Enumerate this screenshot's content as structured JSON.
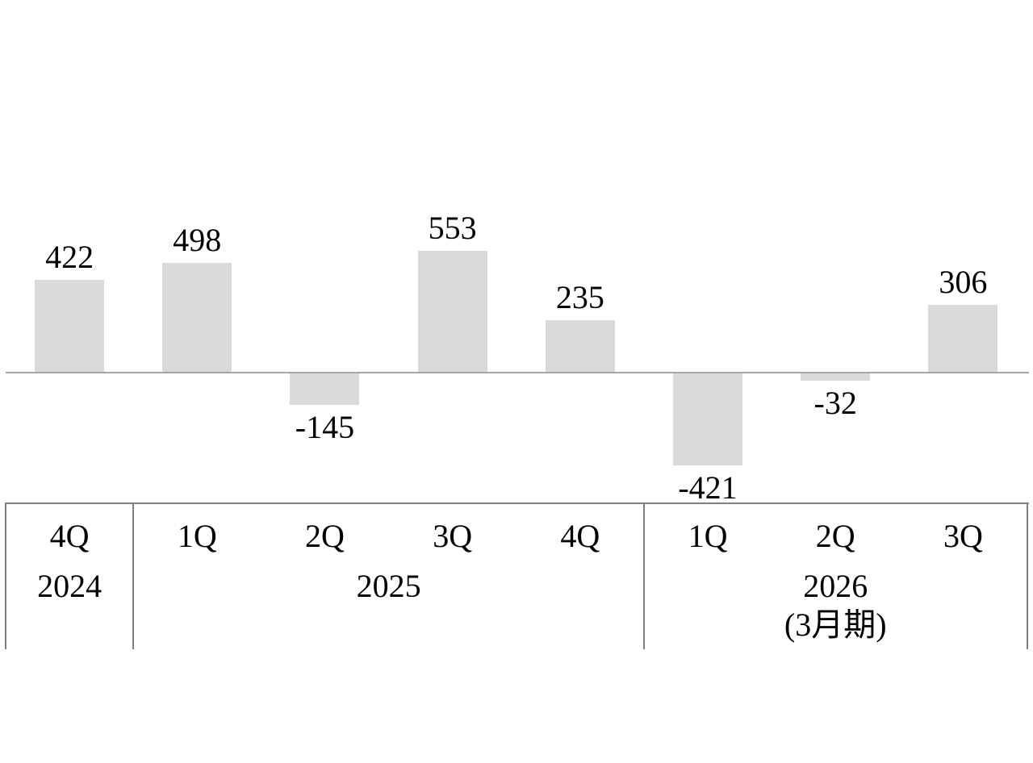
{
  "chart_data": {
    "type": "bar",
    "title": "",
    "xlabel": "",
    "ylabel": "",
    "categories": [
      "4Q",
      "1Q",
      "2Q",
      "3Q",
      "4Q",
      "1Q",
      "2Q",
      "3Q"
    ],
    "values": [
      422,
      498,
      -145,
      553,
      235,
      -421,
      -32,
      306
    ],
    "value_labels": [
      "422",
      "498",
      "-145",
      "553",
      "235",
      "-421",
      "-32",
      "306"
    ],
    "year_groups": [
      {
        "label": "2024",
        "sublabel": "",
        "span": 1
      },
      {
        "label": "2025",
        "sublabel": "",
        "span": 4
      },
      {
        "label": "2026",
        "sublabel": "(3月期)",
        "span": 3
      }
    ],
    "ylim": [
      -583,
      708
    ],
    "grid": false,
    "legend": false,
    "bar_color": "#d9d9d9",
    "axis_color": "#a6a6a6",
    "table_border_color": "#808080",
    "text_color": "#000000"
  }
}
